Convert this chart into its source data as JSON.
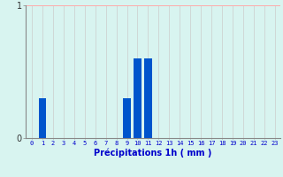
{
  "hours": [
    0,
    1,
    2,
    3,
    4,
    5,
    6,
    7,
    8,
    9,
    10,
    11,
    12,
    13,
    14,
    15,
    16,
    17,
    18,
    19,
    20,
    21,
    22,
    23
  ],
  "values": [
    0,
    0.3,
    0,
    0,
    0,
    0,
    0,
    0,
    0,
    0.3,
    0.6,
    0.6,
    0,
    0,
    0,
    0,
    0,
    0,
    0,
    0,
    0,
    0,
    0,
    0
  ],
  "bar_color": "#0055cc",
  "background_color": "#d8f4f0",
  "vgrid_color": "#cccccc",
  "hgrid_color": "#ffaaaa",
  "xlabel": "Précipitations 1h ( mm )",
  "xlabel_color": "#0000cc",
  "tick_color": "#0000cc",
  "ylim": [
    0,
    1.0
  ],
  "yticks": [
    0,
    1
  ],
  "figsize": [
    3.2,
    2.0
  ],
  "dpi": 100
}
